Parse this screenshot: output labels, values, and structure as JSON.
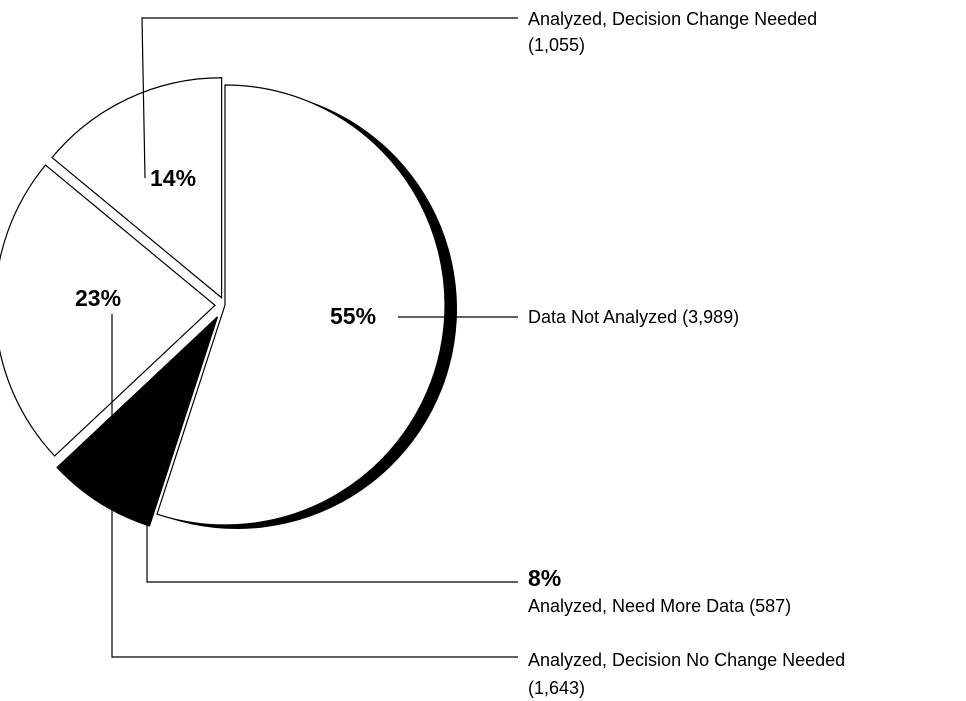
{
  "chart_data": {
    "type": "pie",
    "names": [
      "Data Not Analyzed",
      "Analyzed, Need More Data",
      "Analyzed, Decision No Change Needed",
      "Analyzed, Decision Change Needed"
    ],
    "values": [
      55,
      8,
      23,
      14
    ],
    "value_labels": [
      "55%",
      "8%",
      "23%",
      "14%"
    ],
    "counts": [
      3989,
      587,
      1643,
      1055
    ],
    "count_labels": [
      "(3,989)",
      "(587)",
      "(1,643)",
      "(1,055)"
    ],
    "colors": [
      "#ffffff",
      "#000000",
      "#ffffff",
      "#ffffff"
    ]
  }
}
